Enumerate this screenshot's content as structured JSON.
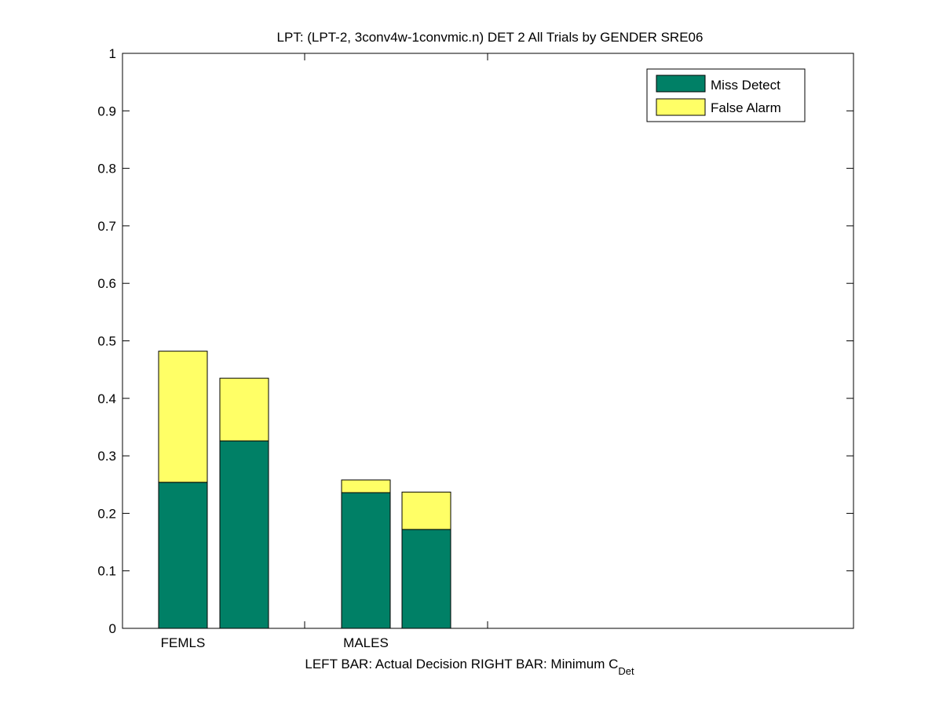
{
  "chart_data": {
    "type": "bar",
    "stacked": true,
    "title": "LPT: (LPT-2, 3conv4w-1convmic.n) DET 2 All Trials by GENDER SRE06",
    "xlabel": "LEFT BAR: Actual Decision     RIGHT BAR: Minimum C",
    "xlabel_subscript": "Det",
    "ylabel": "",
    "ylim": [
      0,
      1
    ],
    "yticks": [
      "0",
      "0.1",
      "0.2",
      "0.3",
      "0.4",
      "0.5",
      "0.6",
      "0.7",
      "0.8",
      "0.9",
      "1"
    ],
    "categories": [
      "FEMLS",
      "MALES"
    ],
    "bar_roles": [
      "Actual Decision",
      "Minimum C_Det"
    ],
    "series": [
      {
        "name": "Miss Detect",
        "color": "#008066",
        "values": [
          [
            0.254,
            0.326
          ],
          [
            0.236,
            0.172
          ]
        ]
      },
      {
        "name": "False Alarm",
        "color": "#ffff66",
        "values": [
          [
            0.228,
            0.109
          ],
          [
            0.022,
            0.065
          ]
        ]
      }
    ],
    "legend_position": "top-right",
    "grid": false
  }
}
